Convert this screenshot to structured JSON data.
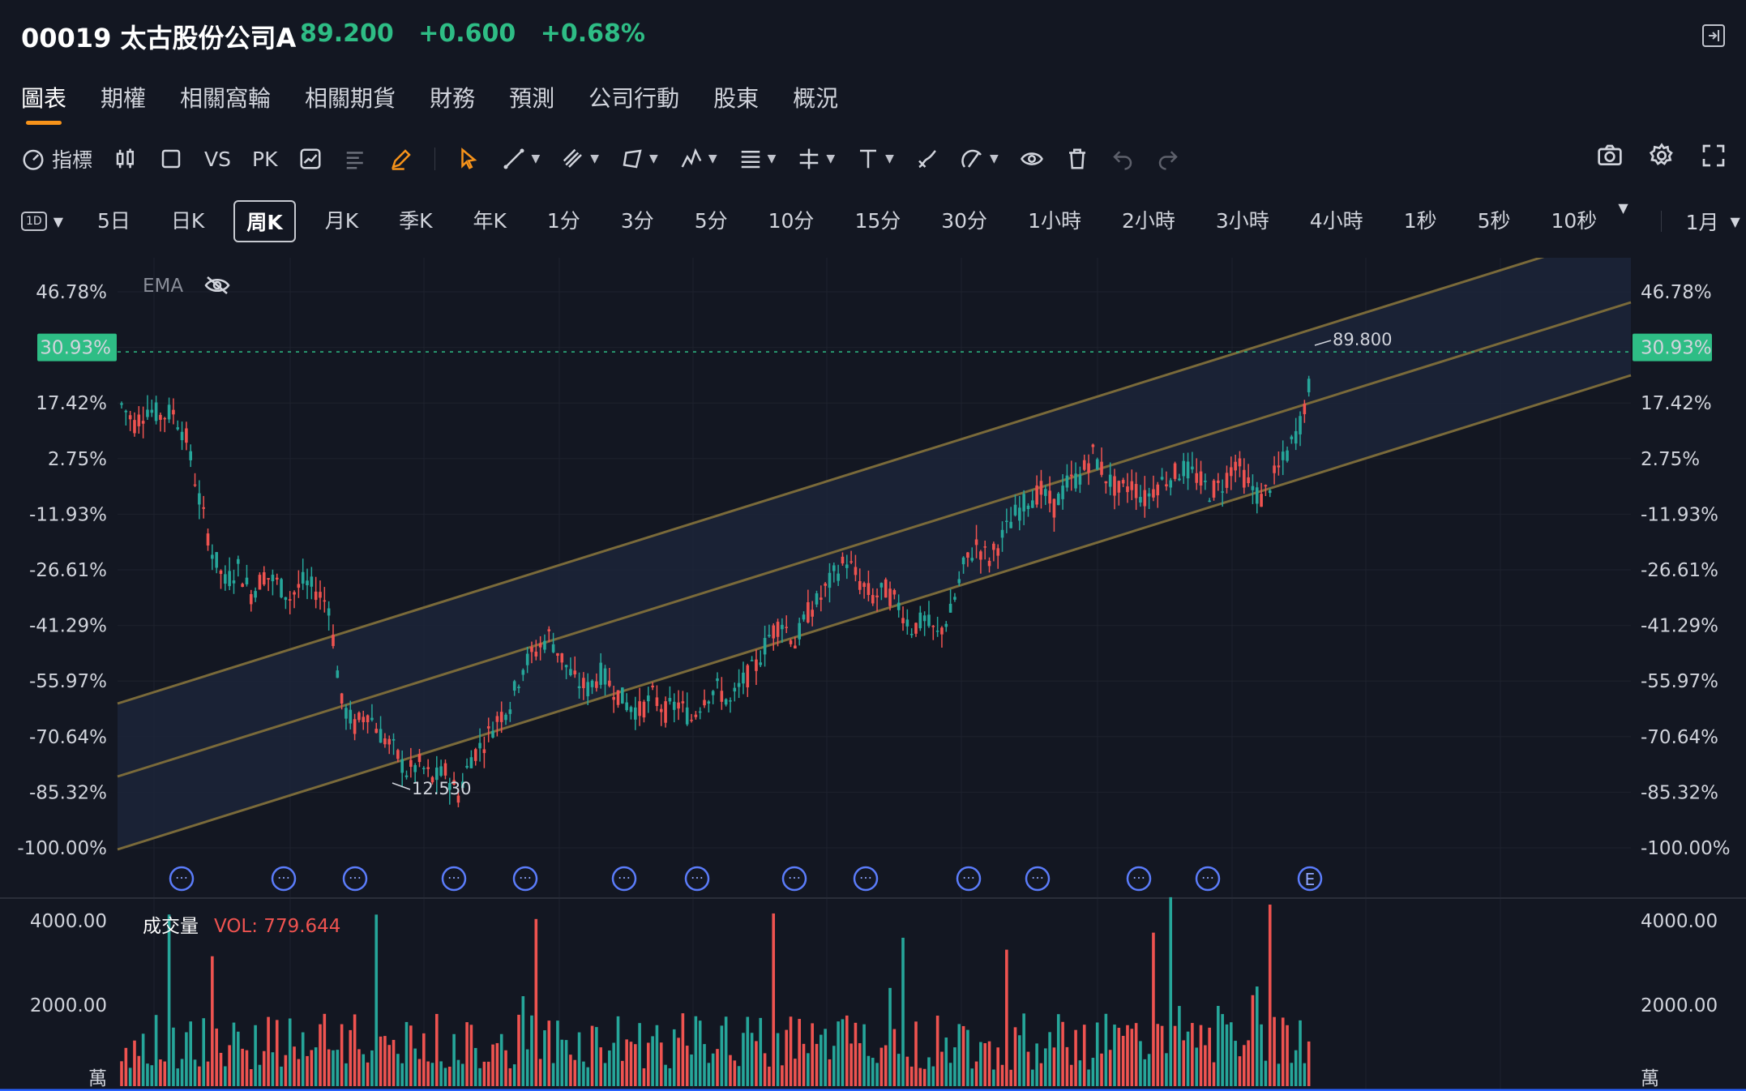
{
  "header": {
    "code_name": "00019 太古股份公司A",
    "price": "89.200",
    "change": "+0.600",
    "change_pct": "+0.68%",
    "up_color": "#2ebd85"
  },
  "tabs": [
    {
      "label": "圖表",
      "active": true
    },
    {
      "label": "期權"
    },
    {
      "label": "相關窩輪"
    },
    {
      "label": "相關期貨"
    },
    {
      "label": "財務"
    },
    {
      "label": "預測"
    },
    {
      "label": "公司行動"
    },
    {
      "label": "股東"
    },
    {
      "label": "概況"
    }
  ],
  "toolbar": {
    "indicator_label": "指標",
    "vs_label": "VS",
    "pk_label": "PK",
    "left_icons": [
      "gauge-icon",
      "candles-icon",
      "square-icon",
      "vs",
      "pk",
      "chart-line-icon",
      "align-icon",
      "pen-icon"
    ],
    "draw_icons": [
      "cursor-icon",
      "trend-line-icon",
      "channel-icon",
      "polygon-icon",
      "pattern-icon",
      "fib-icon",
      "measure-icon",
      "text-icon",
      "brush-icon",
      "eraser-icon",
      "eye-icon",
      "trash-icon",
      "undo-icon",
      "redo-icon"
    ],
    "right_icons": [
      "camera-icon",
      "gear-icon",
      "fullscreen-icon"
    ]
  },
  "intervals": {
    "selector_label": "1D",
    "items": [
      "5日",
      "日K",
      "周K",
      "月K",
      "季K",
      "年K",
      "1分",
      "3分",
      "5分",
      "10分",
      "15分",
      "30分",
      "1小時",
      "2小時",
      "3小時",
      "4小時",
      "1秒",
      "5秒",
      "10秒"
    ],
    "active": "周K",
    "range_label": "1月"
  },
  "chart_data": {
    "type": "candlestick",
    "y_axis_ticks": [
      "46.78%",
      "30.93%",
      "17.42%",
      "2.75%",
      "-11.93%",
      "-26.61%",
      "-41.29%",
      "-55.97%",
      "-70.64%",
      "-85.32%",
      "-100.00%"
    ],
    "current_label": "30.93%",
    "indicator": "EMA",
    "high_annotation": "89.800",
    "low_annotation": "12.530",
    "event_markers": [
      "…",
      "…",
      "…",
      "…",
      "…",
      "…",
      "…",
      "…",
      "…",
      "…",
      "…",
      "…",
      "…",
      "E"
    ],
    "volume": {
      "title": "成交量",
      "value_label": "VOL: 779.644",
      "ticks": [
        "4000.00",
        "2000.00"
      ],
      "unit": "萬"
    },
    "series_path_pct": [
      17,
      12,
      16,
      14,
      15,
      8,
      -8,
      -22,
      -30,
      -26,
      -33,
      -28,
      -30,
      -34,
      -30,
      -32,
      -36,
      -62,
      -68,
      -64,
      -70,
      -74,
      -80,
      -78,
      -82,
      -80,
      -86,
      -76,
      -72,
      -66,
      -62,
      -52,
      -48,
      -44,
      -50,
      -56,
      -58,
      -54,
      -58,
      -62,
      -64,
      -60,
      -64,
      -62,
      -66,
      -60,
      -58,
      -62,
      -56,
      -52,
      -44,
      -40,
      -46,
      -38,
      -34,
      -28,
      -24,
      -30,
      -34,
      -32,
      -36,
      -42,
      -40,
      -44,
      -38,
      -26,
      -20,
      -24,
      -18,
      -12,
      -8,
      -6,
      -10,
      -4,
      -2,
      4,
      -2,
      -6,
      -4,
      -8,
      -4,
      -2,
      0,
      -2,
      -6,
      -4,
      2,
      -4,
      -8,
      -2,
      4,
      12,
      26
    ]
  },
  "colors": {
    "background": "#131722",
    "up": "#26a69a",
    "down": "#ef5350",
    "channel": "#7a6a3a",
    "label_bg": "#2ebd85"
  }
}
